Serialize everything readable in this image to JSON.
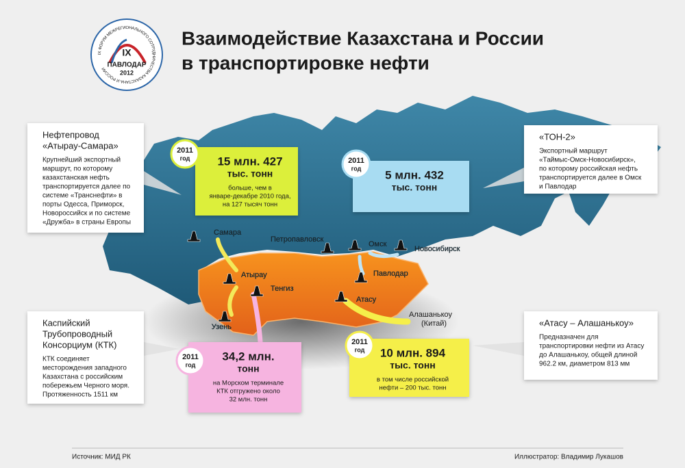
{
  "header": {
    "title": [
      "Взаимодействие Казахстана и России",
      "в транспортировке нефти"
    ]
  },
  "logo": {
    "roman": "IX",
    "city": "ПАВЛОДАР",
    "year": "2012",
    "ring_text": "IX ФОРУМ МЕЖРЕГИОНАЛЬНОГО СОТРУДНИЧЕСТВА КАЗАХСТАНА И РОССИИ"
  },
  "callouts": [
    {
      "title": [
        "Нефтепровод",
        "«Атырау-Самара»"
      ],
      "body": [
        "Крупнейший экспортный",
        "маршрут, по которому",
        "казахстанская нефть",
        "транспортируется далее по",
        "системе «Транснефти» в",
        "порты Одесса, Приморск,",
        "Новороссийск и по системе",
        "«Дружба» в страны Европы"
      ]
    },
    {
      "title": [
        "«ТОН-2»"
      ],
      "body": [
        "Экспортный маршрут",
        "«Таймыс-Омск-Новосибирск»,",
        "по которому российская нефть",
        "транспортируется далее в Омск",
        "и Павлодар"
      ]
    },
    {
      "title": [
        "Каспийский",
        "Трубопроводный",
        "Консорциум (КТК)"
      ],
      "body": [
        "КТК соединяет",
        "месторождения западного",
        "Казахстана с российским",
        "побережьем Черного моря.",
        "Протяженность 1511 км"
      ]
    },
    {
      "title": [
        "«Атасу – Алашанькоу»"
      ],
      "body": [
        "Предназначен для",
        "транспортировки нефти из Атасу",
        "до Алашанькоу, общей длиной",
        "962.2 км, диаметром 813 мм"
      ]
    }
  ],
  "stats": [
    {
      "year": "2011",
      "year_word": "год",
      "amount": [
        "15 млн. 427",
        "тыс. тонн"
      ],
      "note": [
        "больше, чем в",
        "январе-декабре 2010 года,",
        "на 127 тысяч тонн"
      ]
    },
    {
      "year": "2011",
      "year_word": "год",
      "amount": [
        "5 млн. 432",
        "тыс. тонн"
      ]
    },
    {
      "year": "2011",
      "year_word": "год",
      "amount": [
        "34,2 млн.",
        "тонн"
      ],
      "note": [
        "на Морском терминале",
        "КТК отгружено около",
        "32 млн. тонн"
      ]
    },
    {
      "year": "2011",
      "year_word": "год",
      "amount": [
        "10 млн. 894",
        "тыс. тонн"
      ],
      "note": [
        "в том числе российской",
        "нефти – 200 тыс. тонн"
      ]
    }
  ],
  "cities": [
    [
      "Самара"
    ],
    [
      "Атырау"
    ],
    [
      "Тенгиз"
    ],
    [
      "Узень"
    ],
    [
      "Петропавловск"
    ],
    [
      "Омск"
    ],
    [
      "Новосибирск"
    ],
    [
      "Павлодар"
    ],
    [
      "Атасу"
    ],
    [
      "Алашанькоу",
      "(Китай)"
    ]
  ],
  "footer": {
    "source": "Источник: МИД РК",
    "illustrator": "Иллюстратор: Владимир Лукашов"
  }
}
